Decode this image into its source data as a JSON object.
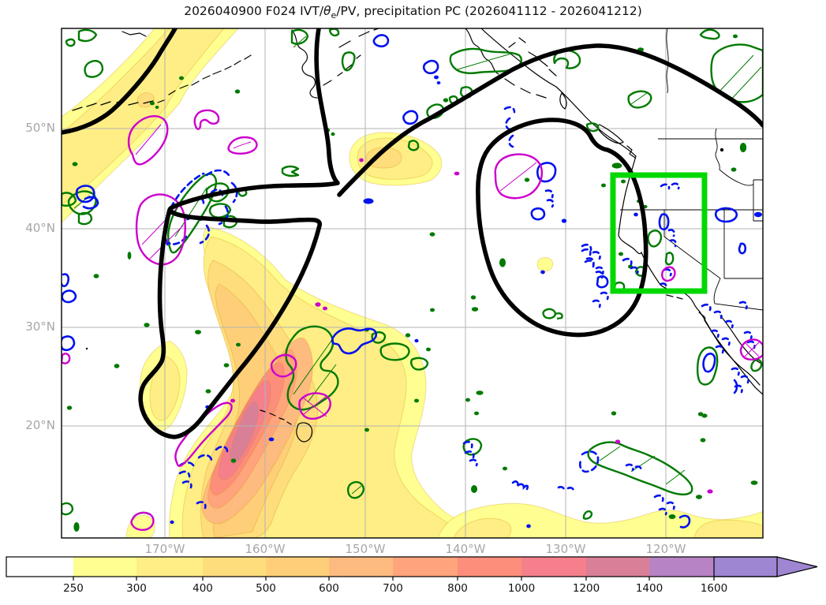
{
  "title": {
    "prefix": "2026040900 F024 IVT/",
    "theta": "θ",
    "theta_sub": "e",
    "suffix": "/PV, precipitation PC (2026041112 - 2026041212)",
    "full": "2026040900 F024 IVT/θe/PV, precipitation PC (2026041112 - 2026041212)"
  },
  "axes": {
    "x_ticks": [
      "170°W",
      "160°W",
      "150°W",
      "140°W",
      "130°W",
      "120°W"
    ],
    "y_ticks": [
      "50°N",
      "40°N",
      "30°N",
      "20°N"
    ]
  },
  "chart_data": {
    "type": "heatmap",
    "subtype": "filled-contour-weather-map",
    "title": "2026040900 F024 IVT/θe/PV, precipitation PC (2026041112 - 2026041212)",
    "init_time": "2026040900",
    "forecast_hour": "F024",
    "precip_accumulation_window": "2026041112 - 2026041212",
    "x_axis": {
      "tick_labels": [
        "170°W",
        "160°W",
        "150°W",
        "140°W",
        "130°W",
        "120°W"
      ],
      "approx_range": [
        "180°W",
        "110°W"
      ]
    },
    "y_axis": {
      "tick_labels": [
        "50°N",
        "40°N",
        "30°N",
        "20°N"
      ],
      "approx_range": [
        "9°N",
        "60°N"
      ]
    },
    "grid": true,
    "colorbar": {
      "orientation": "horizontal",
      "extend": "max",
      "tick_labels": [
        "250",
        "300",
        "400",
        "500",
        "600",
        "700",
        "800",
        "1000",
        "1200",
        "1400",
        "1600"
      ],
      "levels": [
        250,
        300,
        400,
        500,
        600,
        700,
        800,
        1000,
        1200,
        1400,
        1600
      ],
      "colors": [
        "#ffffff",
        "#feff90",
        "#feee85",
        "#fedd7d",
        "#fecf78",
        "#febb80",
        "#ffa47c",
        "#fc8e7b",
        "#f5808c",
        "#d98098",
        "#b783c4",
        "#9e86d2"
      ]
    },
    "filled_field": {
      "name": "IVT filled contours",
      "main_plume": "elongated SW-NE plume near Hawaii, core reaches the 1000-1200 shading band near 162°W 21-24°N",
      "secondary_maxima": [
        "diagonal band through upper-left (250-400 band)",
        "blob near 157°W 46°N (to 400)",
        "low-latitude band along southern edge (250-300)"
      ]
    },
    "line_layers": [
      {
        "name": "thick-black-contour",
        "color": "#000000",
        "style": "solid thick",
        "features": "band through NW, large closed loop near 173-166°W 20-40°N with westward beak, long arc into Gulf of Alaska, large closed loop near 138-130°W 30-45°N"
      },
      {
        "name": "green-solid-contours",
        "color": "#007a00",
        "style": "solid, some hatched, many small filled specks"
      },
      {
        "name": "blue-dashed-contours",
        "color": "#0012ee",
        "style": "dashed, many small cells"
      },
      {
        "name": "magenta-contours",
        "color": "#cc00cc",
        "style": "solid, some hatched"
      },
      {
        "name": "coastlines-borders",
        "color": "#000000",
        "style": "thin"
      }
    ],
    "region_box": {
      "name": "target-region-box",
      "color": "#00d800",
      "approx_lon_range": "125°W-116°W",
      "approx_lat_range": "34°N-45.5°N",
      "covers": "California / US West Coast"
    }
  }
}
